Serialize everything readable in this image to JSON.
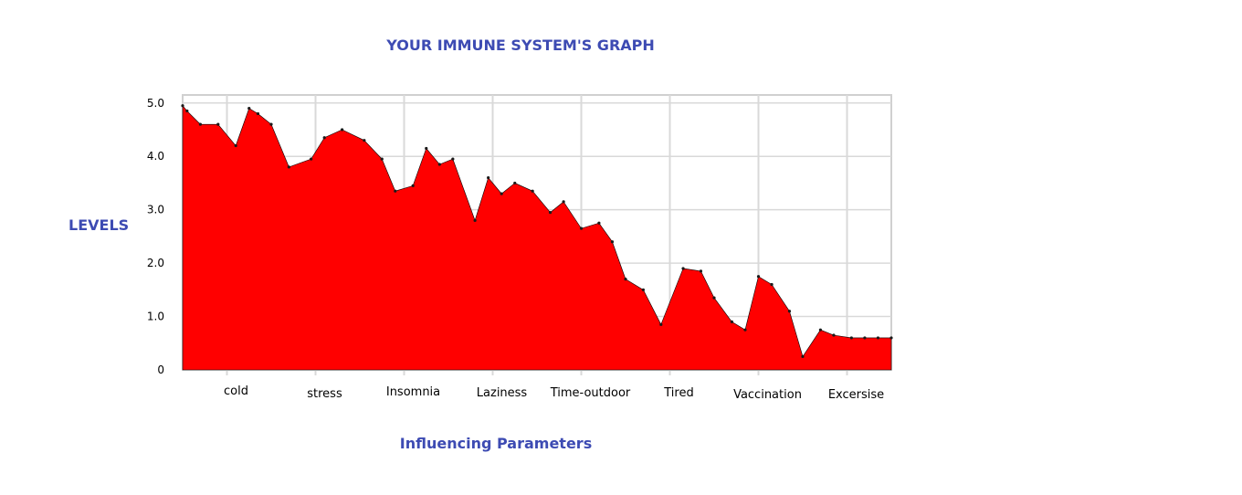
{
  "chart_data": {
    "type": "area",
    "title": "YOUR IMMUNE SYSTEM'S GRAPH",
    "xlabel": "Influencing Parameters",
    "ylabel": "LEVELS",
    "categories": [
      "cold",
      "stress",
      "Insomnia",
      "Laziness",
      "Time-outdoor",
      "Tired",
      "Vaccination",
      "Excersise"
    ],
    "yticks": [
      {
        "value": 0,
        "label": "0"
      },
      {
        "value": 1,
        "label": "1.0"
      },
      {
        "value": 2,
        "label": "2.0"
      },
      {
        "value": 3,
        "label": "3.0"
      },
      {
        "value": 4,
        "label": "4.0"
      },
      {
        "value": 5,
        "label": "5.0"
      }
    ],
    "ylim": [
      0,
      5.15
    ],
    "xlim": [
      0,
      8
    ],
    "grid": true,
    "legend": "none",
    "series": [
      {
        "x": [
          0.0,
          0.05,
          0.2,
          0.4,
          0.6,
          0.75,
          0.85,
          1.0,
          1.2,
          1.45,
          1.6,
          1.8,
          2.05,
          2.25,
          2.4,
          2.6,
          2.75,
          2.9,
          3.05,
          3.3,
          3.45,
          3.6,
          3.75,
          3.95,
          4.15,
          4.3,
          4.5,
          4.7,
          4.85,
          5.0,
          5.2,
          5.4,
          5.65,
          5.85,
          6.0,
          6.2,
          6.35,
          6.5,
          6.65,
          6.85,
          7.0,
          7.2,
          7.35,
          7.55,
          7.7,
          7.85,
          8.0
        ],
        "values": [
          4.95,
          4.85,
          4.6,
          4.6,
          4.2,
          4.9,
          4.8,
          4.6,
          3.8,
          3.95,
          4.35,
          4.5,
          4.3,
          3.95,
          3.35,
          3.45,
          4.15,
          3.85,
          3.95,
          2.8,
          3.6,
          3.3,
          3.5,
          3.35,
          2.95,
          3.15,
          2.65,
          2.75,
          2.4,
          1.7,
          1.5,
          0.85,
          1.9,
          1.85,
          1.35,
          0.9,
          0.75,
          1.75,
          1.6,
          1.1,
          0.25,
          0.75,
          0.65,
          0.6,
          0.6,
          0.6,
          0.6
        ],
        "color": "#ff0000"
      }
    ],
    "colors": {
      "fill": "#ff0000",
      "grid": "#d9d9d9",
      "title": "#3d4bb3",
      "plot_border": "#d0d0d0"
    }
  }
}
